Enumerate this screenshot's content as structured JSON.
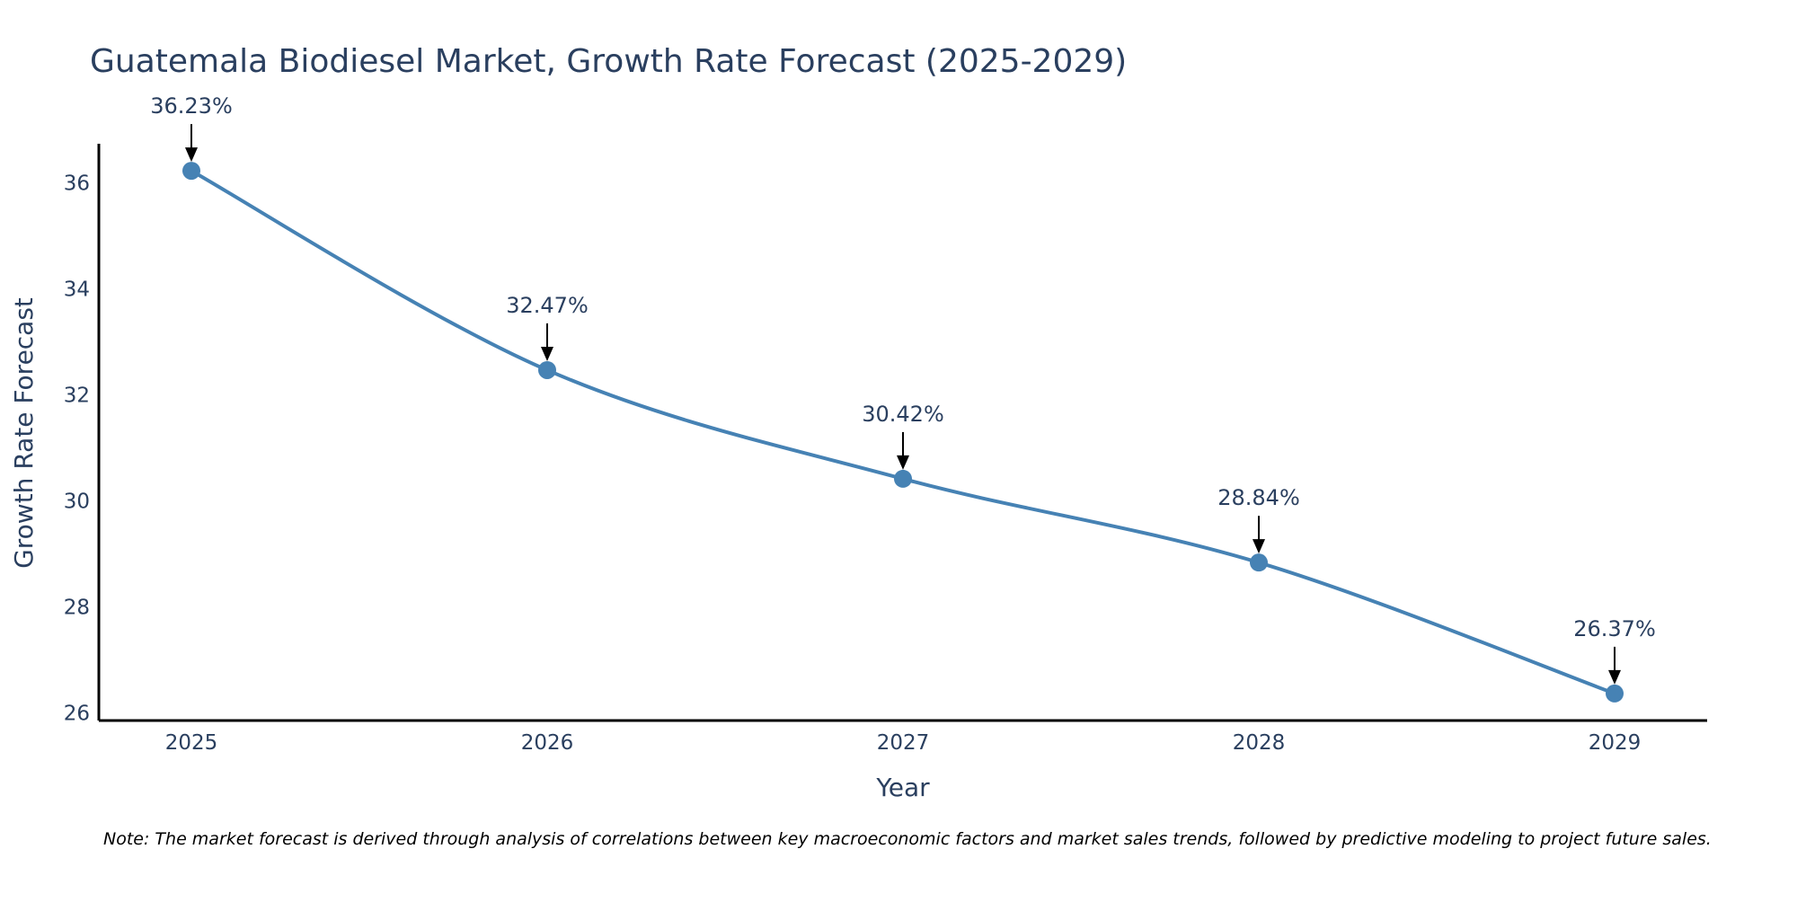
{
  "chart_data": {
    "type": "line",
    "title": "Guatemala Biodiesel Market, Growth Rate Forecast (2025-2029)",
    "xlabel": "Year",
    "ylabel": "Growth Rate Forecast",
    "categories": [
      "2025",
      "2026",
      "2027",
      "2028",
      "2029"
    ],
    "values": [
      36.23,
      32.47,
      30.42,
      28.84,
      26.37
    ],
    "data_labels": [
      "36.23%",
      "32.47%",
      "30.42%",
      "28.84%",
      "26.37%"
    ],
    "yticks": [
      "26",
      "28",
      "30",
      "32",
      "34",
      "36"
    ],
    "ylim": [
      25.86,
      36.74
    ],
    "grid": false,
    "line_shape": "spline",
    "line_color": "#4682b4",
    "marker_color": "#4682b4",
    "annotation_color": "#000000",
    "note": "Note: The market forecast is derived through analysis of correlations between key macroeconomic factors and market sales trends, followed by predictive modeling to project future sales."
  }
}
